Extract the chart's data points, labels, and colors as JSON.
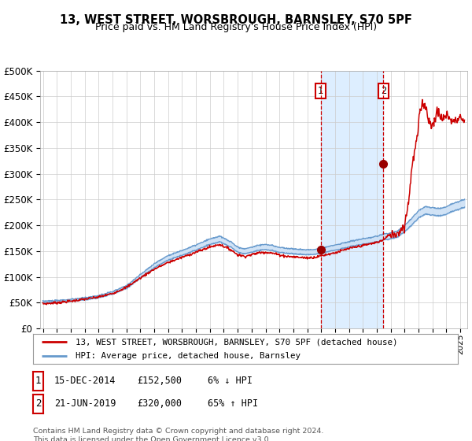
{
  "title": "13, WEST STREET, WORSBROUGH, BARNSLEY, S70 5PF",
  "subtitle": "Price paid vs. HM Land Registry's House Price Index (HPI)",
  "legend_line1": "13, WEST STREET, WORSBROUGH, BARNSLEY, S70 5PF (detached house)",
  "legend_line2": "HPI: Average price, detached house, Barnsley",
  "footnote": "Contains HM Land Registry data © Crown copyright and database right 2024.\nThis data is licensed under the Open Government Licence v3.0.",
  "table_rows": [
    [
      "1",
      "15-DEC-2014",
      "£152,500",
      "6% ↓ HPI"
    ],
    [
      "2",
      "21-JUN-2019",
      "£320,000",
      "65% ↑ HPI"
    ]
  ],
  "sale1_date": 2014.96,
  "sale1_price": 152500,
  "sale2_date": 2019.47,
  "sale2_price": 320000,
  "hpi_color": "#6699cc",
  "hpi_band_color": "#cce0f5",
  "price_color": "#cc0000",
  "sale_marker_color": "#990000",
  "vline_color": "#cc0000",
  "shade_color": "#ddeeff",
  "background_color": "#ffffff",
  "grid_color": "#cccccc",
  "ylim": [
    0,
    500000
  ],
  "yticks": [
    0,
    50000,
    100000,
    150000,
    200000,
    250000,
    300000,
    350000,
    400000,
    450000,
    500000
  ],
  "xlim_start": 1994.8,
  "xlim_end": 2025.5
}
